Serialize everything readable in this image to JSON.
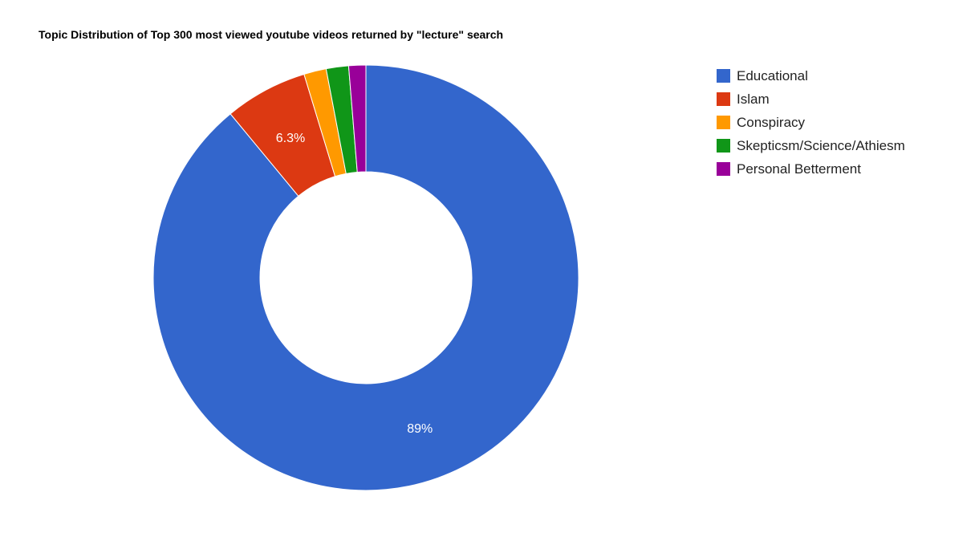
{
  "chart_data": {
    "type": "pie",
    "title": "Topic Distribution of Top 300 most viewed youtube videos returned by \"lecture\" search",
    "donut": true,
    "legend_position": "right",
    "series": [
      {
        "name": "Educational",
        "value": 89.0,
        "label": "89%",
        "color": "#3366cc"
      },
      {
        "name": "Islam",
        "value": 6.3,
        "label": "6.3%",
        "color": "#dc3912"
      },
      {
        "name": "Conspiracy",
        "value": 1.7,
        "label": "",
        "color": "#ff9900"
      },
      {
        "name": "Skepticsm/Science/Athiesm",
        "value": 1.7,
        "label": "",
        "color": "#109618"
      },
      {
        "name": "Personal Betterment",
        "value": 1.3,
        "label": "",
        "color": "#990099"
      }
    ]
  }
}
